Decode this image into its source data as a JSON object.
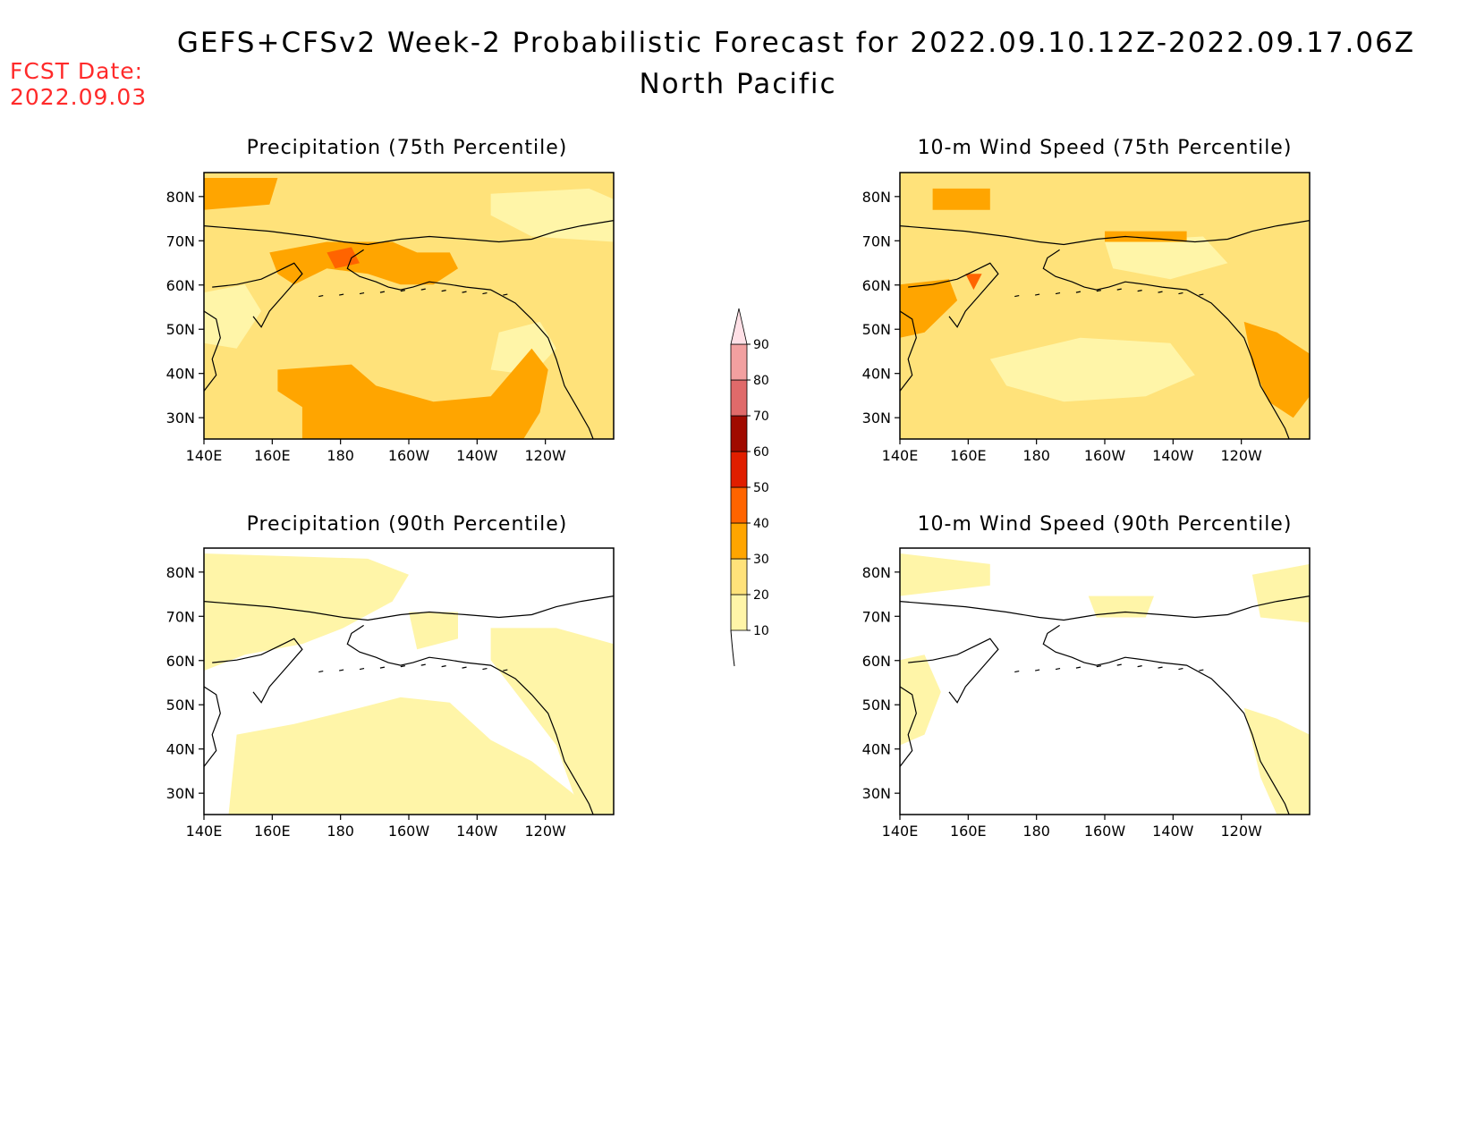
{
  "header": {
    "title": "GEFS+CFSv2 Week-2 Probabilistic Forecast for 2022.09.10.12Z-2022.09.17.06Z",
    "subtitle": "North Pacific",
    "fcst_label": "FCST Date:",
    "fcst_date": "2022.09.03"
  },
  "panels": [
    {
      "title": "Precipitation (75th Percentile)",
      "level": "high"
    },
    {
      "title": "10-m Wind Speed (75th Percentile)",
      "level": "high"
    },
    {
      "title": "Precipitation (90th Percentile)",
      "level": "low"
    },
    {
      "title": "10-m Wind Speed (90th Percentile)",
      "level": "low"
    }
  ],
  "axes": {
    "lon_ticks": [
      "140E",
      "160E",
      "180",
      "160W",
      "140W",
      "120W"
    ],
    "lat_ticks": [
      "80N",
      "70N",
      "60N",
      "50N",
      "40N",
      "30N"
    ]
  },
  "colorbar": {
    "levels": [
      "10",
      "20",
      "30",
      "40",
      "50",
      "60",
      "70",
      "80",
      "90"
    ],
    "colors": [
      "#fff5a8",
      "#ffe27a",
      "#ffa500",
      "#ff6400",
      "#e01e00",
      "#a00a00",
      "#e06a6a",
      "#f2a0a0",
      "#ffe0e6"
    ]
  }
}
